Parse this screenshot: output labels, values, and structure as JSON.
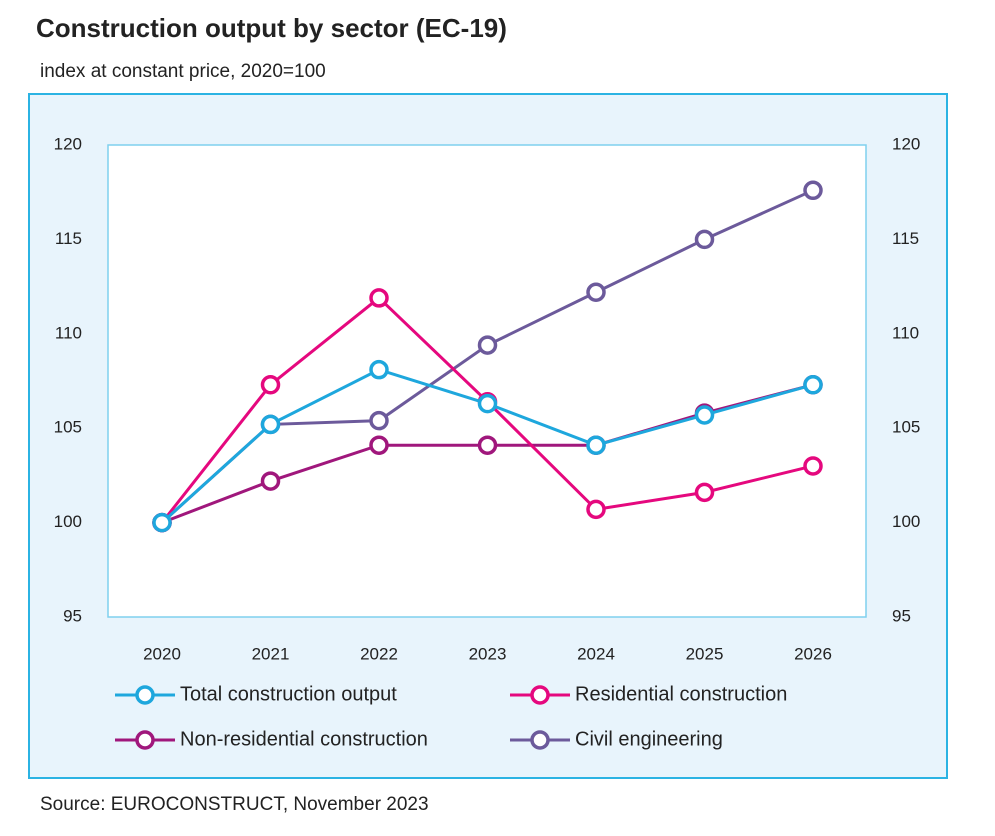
{
  "chart_data": {
    "type": "line",
    "title": "Construction output by sector (EC-19)",
    "subtitle": "index at constant price, 2020=100",
    "source": "Source: EUROCONSTRUCT, November 2023",
    "categories": [
      "2020",
      "2021",
      "2022",
      "2023",
      "2024",
      "2025",
      "2026"
    ],
    "series": [
      {
        "name": "Total construction output",
        "color": "#1ea7dd",
        "values": [
          100,
          105.2,
          108.1,
          106.3,
          104.1,
          105.7,
          107.3
        ]
      },
      {
        "name": "Residential construction",
        "color": "#e5087e",
        "values": [
          100,
          107.3,
          111.9,
          106.4,
          100.7,
          101.6,
          103.0
        ]
      },
      {
        "name": "Non-residential construction",
        "color": "#a0177c",
        "values": [
          100,
          102.2,
          104.1,
          104.1,
          104.1,
          105.8,
          107.3
        ]
      },
      {
        "name": "Civil engineering",
        "color": "#6c5a9b",
        "values": [
          100,
          105.2,
          105.4,
          109.4,
          112.2,
          115.0,
          117.6
        ]
      }
    ],
    "ylim": [
      95,
      120
    ],
    "yticks": [
      95,
      100,
      105,
      110,
      115,
      120
    ],
    "y2lim": [
      95,
      120
    ],
    "y2ticks": [
      95,
      100,
      105,
      110,
      115,
      120
    ],
    "legend": "bottom"
  }
}
